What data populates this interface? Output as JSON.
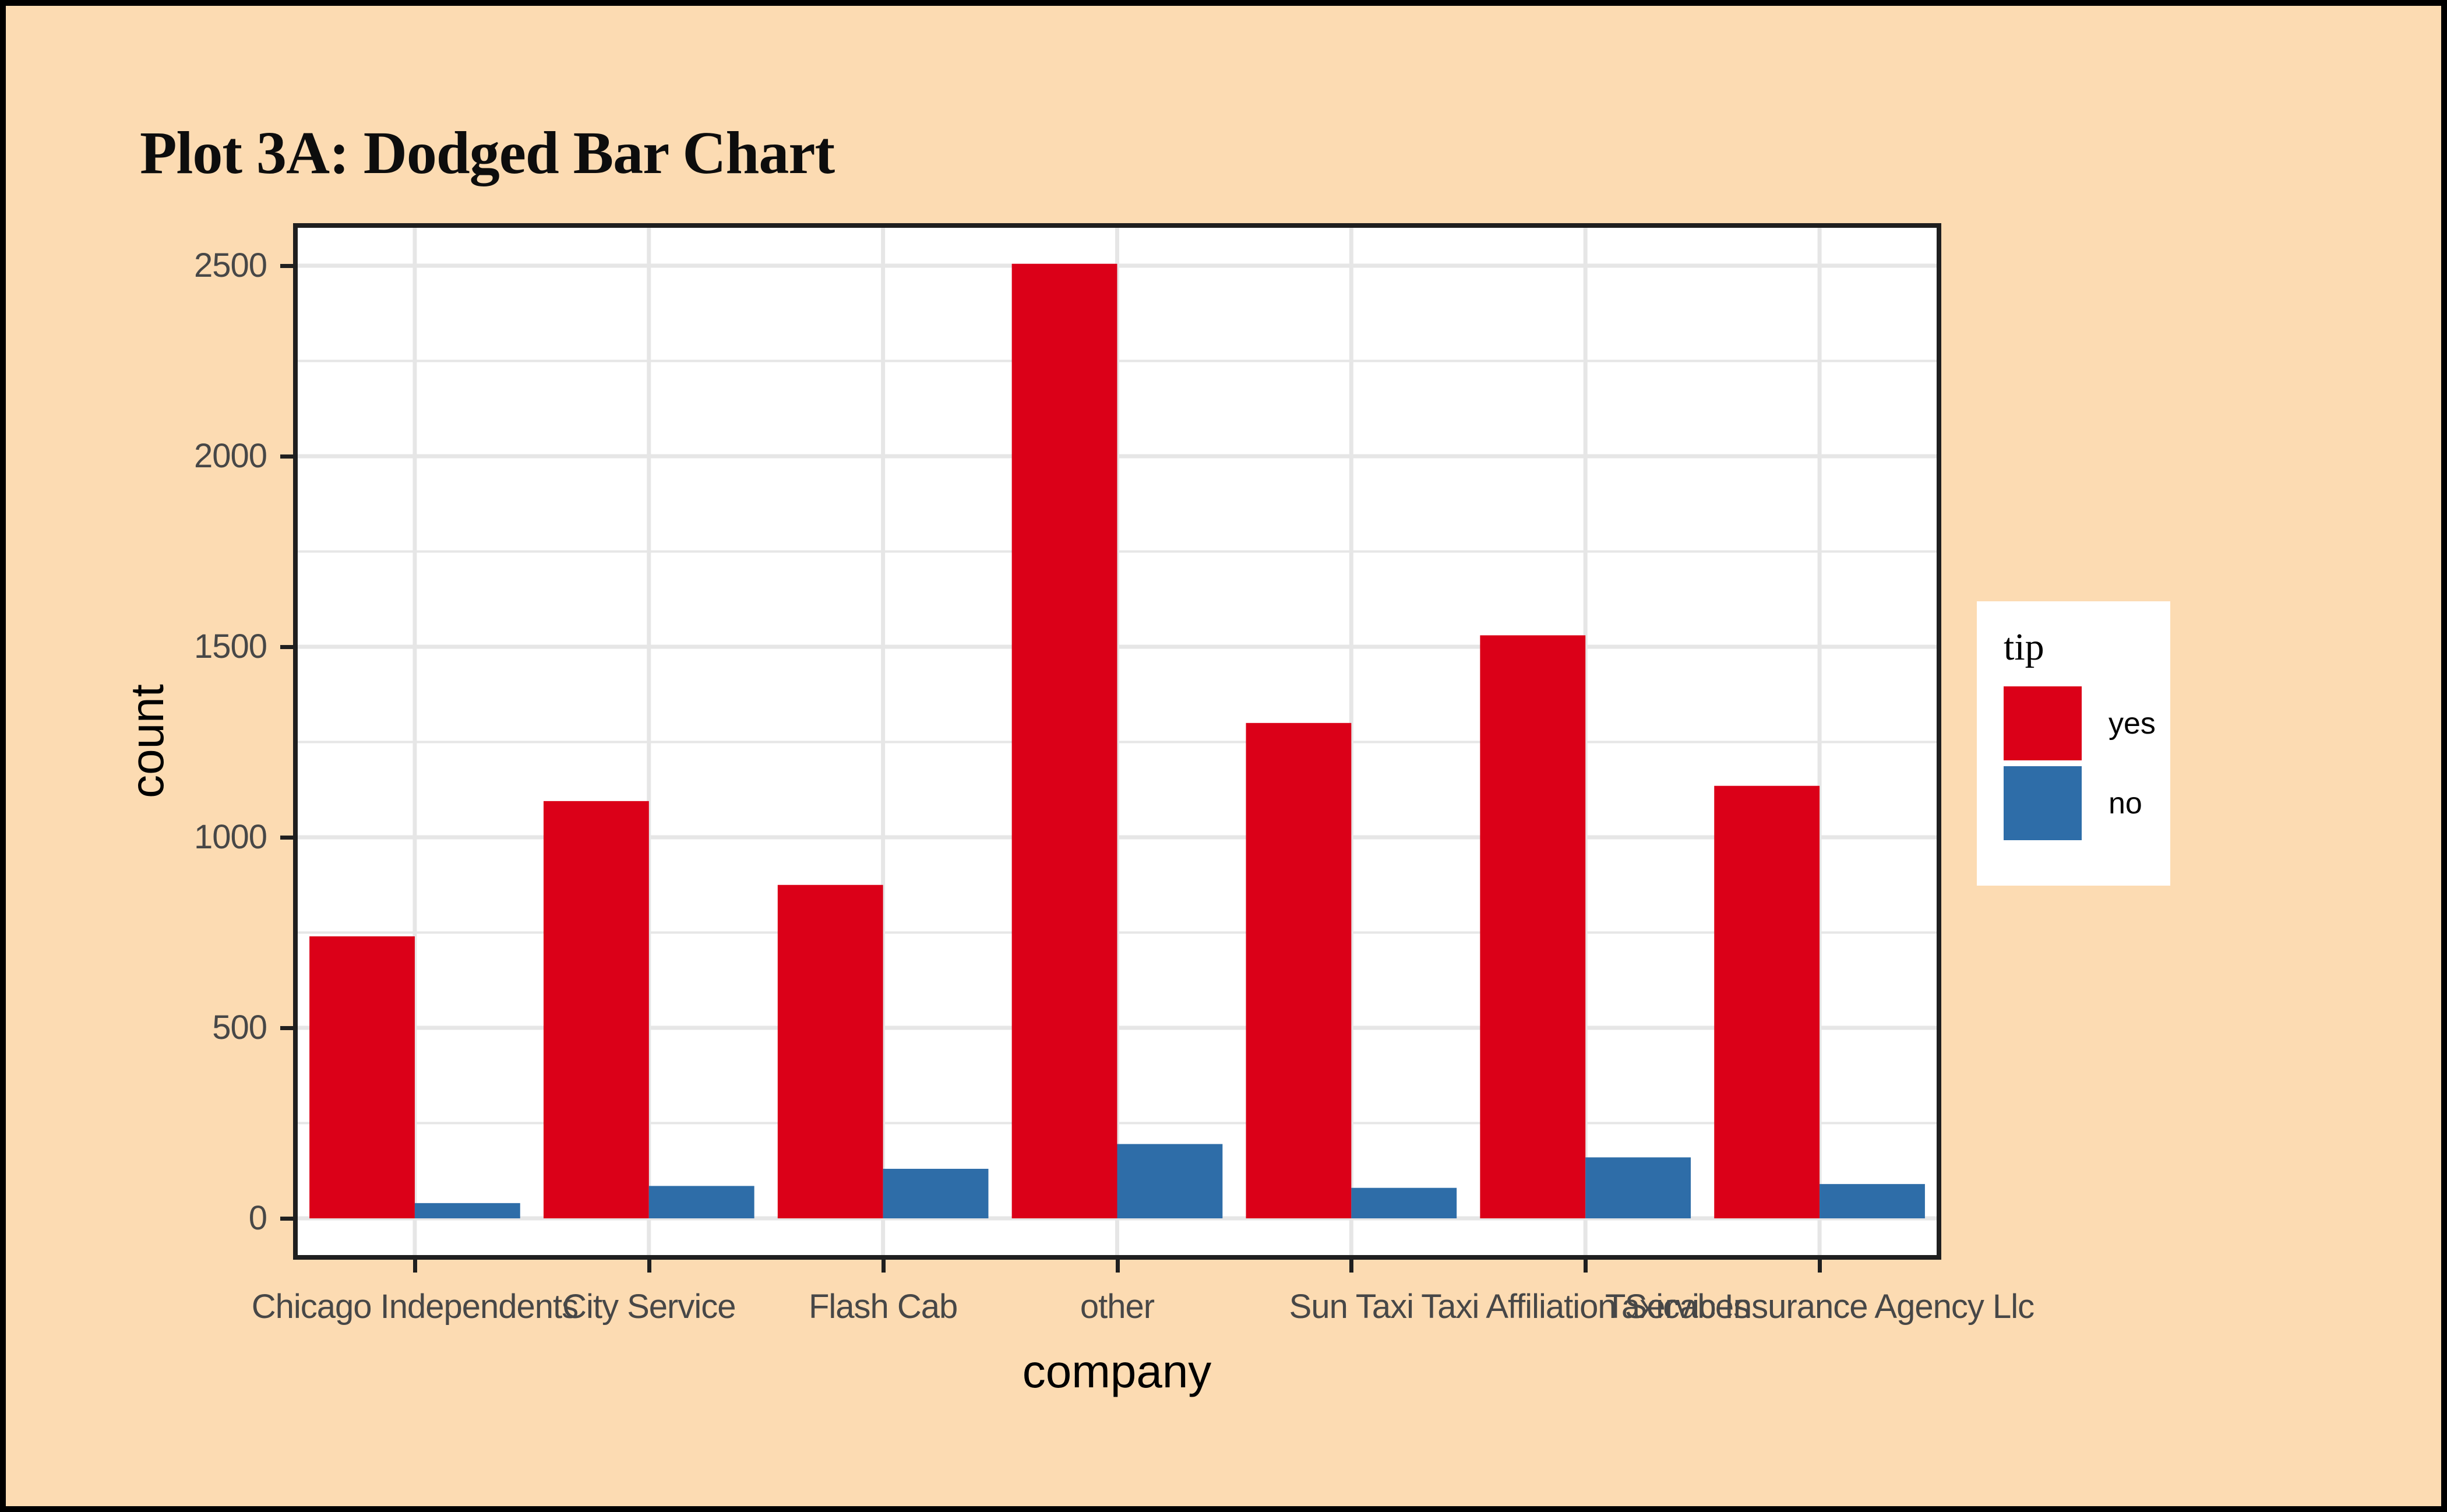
{
  "chart_data": {
    "type": "bar",
    "mode": "dodged",
    "title": "Plot 3A: Dodged Bar Chart",
    "xlabel": "company",
    "ylabel": "count",
    "categories": [
      "Chicago Independents",
      "City Service",
      "Flash Cab",
      "other",
      "Sun Taxi",
      "Taxi Affiliation Services",
      "Taxicab Insurance Agency Llc"
    ],
    "series": [
      {
        "name": "yes",
        "color": "#DB0018",
        "values": [
          740,
          1095,
          875,
          2505,
          1300,
          1530,
          1135
        ]
      },
      {
        "name": "no",
        "color": "#2E6DA8",
        "values": [
          40,
          85,
          130,
          195,
          80,
          160,
          90
        ]
      }
    ],
    "legend": {
      "title": "tip",
      "position": "right",
      "entries": [
        "yes",
        "no"
      ]
    },
    "ylim": [
      0,
      2640
    ],
    "yticks": [
      0,
      500,
      1000,
      1500,
      2000,
      2500
    ],
    "yticks_minor": [
      250,
      750,
      1250,
      1750,
      2250
    ],
    "grid": true,
    "colors": {
      "figure_background": "#FCDBB2",
      "panel_background": "#FFFFFF",
      "gridline": "#E6E6E6",
      "axis_text": "#474747",
      "axis_line": "#1f1f1f",
      "frame_border": "#000000"
    }
  }
}
